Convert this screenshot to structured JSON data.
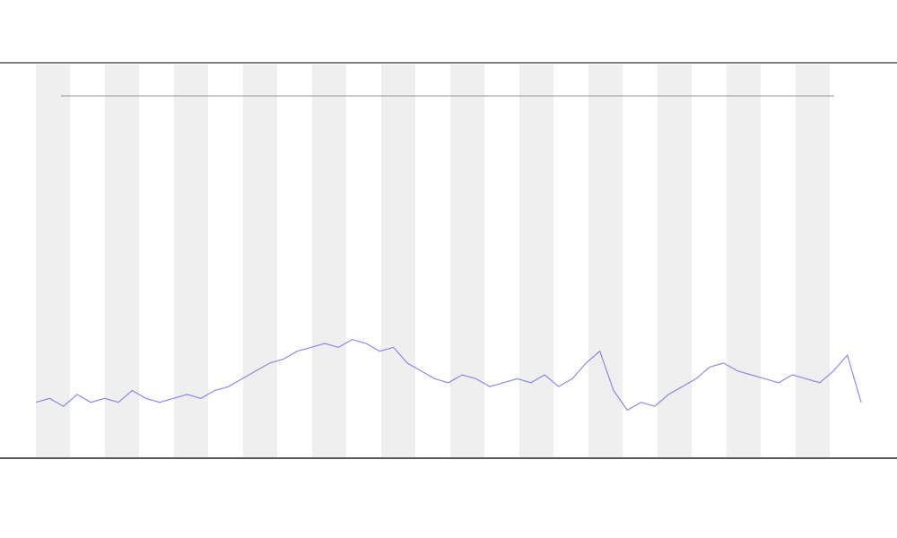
{
  "chart_data": {
    "type": "line",
    "color": "#6f6fe8",
    "x": [
      0,
      1,
      2,
      3,
      4,
      5,
      6,
      7,
      8,
      9,
      10,
      11,
      12,
      13,
      14,
      15,
      16,
      17,
      18,
      19,
      20,
      21,
      22,
      23,
      24,
      25,
      26,
      27,
      28,
      29,
      30,
      31,
      32,
      33,
      34,
      35,
      36,
      37,
      38,
      39,
      40,
      41,
      42,
      43,
      44,
      45,
      46,
      47,
      48,
      49,
      50,
      51,
      52,
      53,
      54,
      55,
      56,
      57,
      58,
      59,
      60
    ],
    "values": [
      14,
      15,
      13,
      16,
      14,
      15,
      14,
      17,
      15,
      14,
      15,
      16,
      15,
      17,
      18,
      20,
      22,
      24,
      25,
      27,
      28,
      29,
      28,
      30,
      29,
      27,
      28,
      24,
      22,
      20,
      19,
      21,
      20,
      18,
      19,
      20,
      19,
      21,
      18,
      20,
      24,
      27,
      17,
      12,
      14,
      13,
      16,
      18,
      20,
      23,
      24,
      22,
      21,
      20,
      19,
      21,
      20,
      19,
      22,
      26,
      14
    ],
    "xlim": [
      0,
      60
    ],
    "ylim": [
      0,
      100
    ]
  }
}
